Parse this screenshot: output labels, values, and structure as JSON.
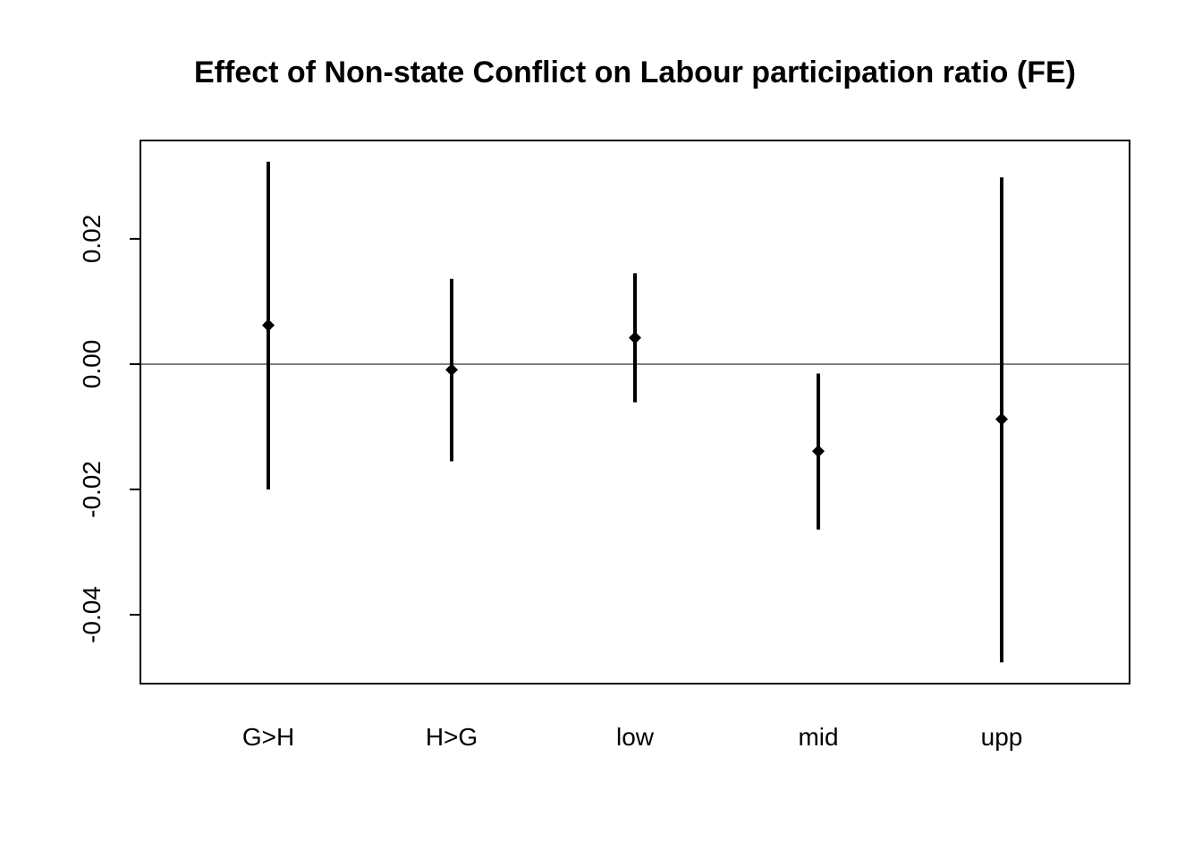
{
  "chart_data": {
    "type": "scatter",
    "title": "Effect of Non-state Conflict on Labour participation ratio (FE)",
    "xlabel": "",
    "ylabel": "",
    "categories": [
      "G>H",
      "H>G",
      "low",
      "mid",
      "upp"
    ],
    "series": [
      {
        "estimate": [
          0.0062,
          -0.0009,
          0.0042,
          -0.0139,
          -0.0088
        ],
        "lower": [
          -0.02,
          -0.0155,
          -0.0061,
          -0.0264,
          -0.0476
        ],
        "upper": [
          0.0323,
          0.0136,
          0.0145,
          -0.0015,
          0.0298
        ]
      }
    ],
    "yticks": [
      -0.04,
      -0.02,
      0.0,
      0.02
    ],
    "ytick_labels": [
      "-0.04",
      "-0.02",
      "0.00",
      "0.02"
    ],
    "ylim": [
      -0.051,
      0.0357
    ],
    "reference_line": 0.0,
    "grid": false,
    "legend": "none",
    "colors": {
      "marks": "#000000",
      "background": "#ffffff"
    }
  }
}
